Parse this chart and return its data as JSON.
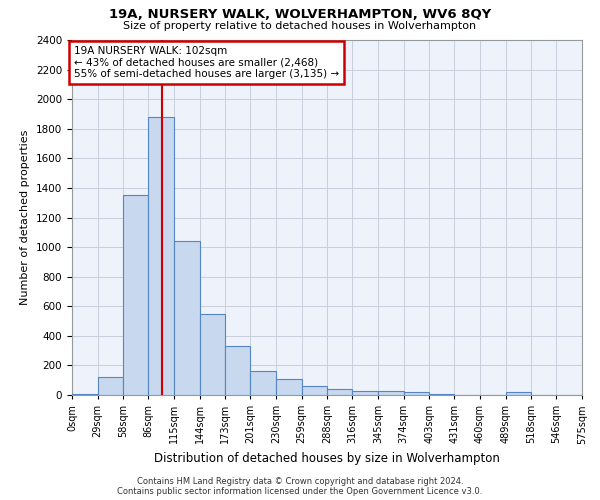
{
  "title": "19A, NURSERY WALK, WOLVERHAMPTON, WV6 8QY",
  "subtitle": "Size of property relative to detached houses in Wolverhampton",
  "xlabel": "Distribution of detached houses by size in Wolverhampton",
  "ylabel": "Number of detached properties",
  "footer_line1": "Contains HM Land Registry data © Crown copyright and database right 2024.",
  "footer_line2": "Contains public sector information licensed under the Open Government Licence v3.0.",
  "annotation_line1": "19A NURSERY WALK: 102sqm",
  "annotation_line2": "← 43% of detached houses are smaller (2,468)",
  "annotation_line3": "55% of semi-detached houses are larger (3,135) →",
  "property_size": 102,
  "bin_edges": [
    0,
    29,
    58,
    86,
    115,
    144,
    173,
    201,
    230,
    259,
    288,
    316,
    345,
    374,
    403,
    431,
    460,
    489,
    518,
    546,
    575
  ],
  "bar_values": [
    10,
    125,
    1350,
    1880,
    1040,
    545,
    330,
    160,
    110,
    60,
    40,
    30,
    25,
    20,
    5,
    0,
    0,
    20,
    0,
    0
  ],
  "bar_color": "#c8d8ee",
  "bar_edge_color": "#5585c5",
  "line_color": "#cc0000",
  "annotation_box_color": "#cc0000",
  "background_color": "#eef2fa",
  "grid_color": "#c8cedd",
  "ylim": [
    0,
    2400
  ],
  "xlim_left": 0,
  "xlim_right": 575
}
